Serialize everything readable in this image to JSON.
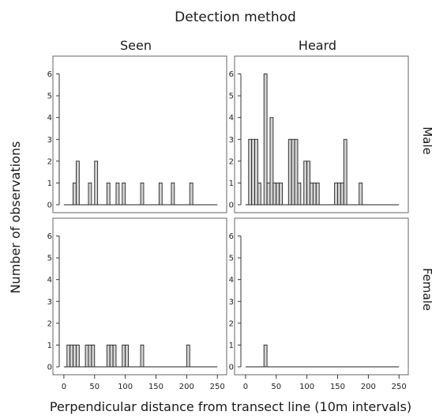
{
  "chart_data": {
    "type": "bar",
    "title": "Detection method",
    "xlabel": "Perpendicular distance from transect line (10m intervals)",
    "ylabel": "Number of observations",
    "columns": [
      "Seen",
      "Heard"
    ],
    "rows": [
      "Male",
      "Female"
    ],
    "xlim": [
      -5,
      260
    ],
    "ylim": [
      0,
      6.6
    ],
    "bin_width": 5,
    "xticks": [
      0,
      50,
      100,
      150,
      200,
      250
    ],
    "yticks": [
      0,
      1,
      2,
      3,
      4,
      5,
      6
    ],
    "panels": [
      {
        "row": "Male",
        "column": "Seen",
        "bars": [
          {
            "x": 15,
            "y": 1
          },
          {
            "x": 20,
            "y": 2
          },
          {
            "x": 40,
            "y": 1
          },
          {
            "x": 50,
            "y": 2
          },
          {
            "x": 70,
            "y": 1
          },
          {
            "x": 85,
            "y": 1
          },
          {
            "x": 95,
            "y": 1
          },
          {
            "x": 125,
            "y": 1
          },
          {
            "x": 155,
            "y": 1
          },
          {
            "x": 175,
            "y": 1
          },
          {
            "x": 205,
            "y": 1
          }
        ]
      },
      {
        "row": "Male",
        "column": "Heard",
        "bars": [
          {
            "x": 5,
            "y": 3
          },
          {
            "x": 10,
            "y": 3
          },
          {
            "x": 15,
            "y": 3
          },
          {
            "x": 20,
            "y": 1
          },
          {
            "x": 30,
            "y": 6
          },
          {
            "x": 35,
            "y": 1
          },
          {
            "x": 40,
            "y": 4
          },
          {
            "x": 45,
            "y": 1
          },
          {
            "x": 50,
            "y": 1
          },
          {
            "x": 55,
            "y": 1
          },
          {
            "x": 70,
            "y": 3
          },
          {
            "x": 75,
            "y": 3
          },
          {
            "x": 80,
            "y": 3
          },
          {
            "x": 85,
            "y": 1
          },
          {
            "x": 95,
            "y": 2
          },
          {
            "x": 100,
            "y": 2
          },
          {
            "x": 105,
            "y": 1
          },
          {
            "x": 110,
            "y": 1
          },
          {
            "x": 115,
            "y": 1
          },
          {
            "x": 145,
            "y": 1
          },
          {
            "x": 150,
            "y": 1
          },
          {
            "x": 155,
            "y": 1
          },
          {
            "x": 160,
            "y": 3
          },
          {
            "x": 185,
            "y": 1
          }
        ]
      },
      {
        "row": "Female",
        "column": "Seen",
        "bars": [
          {
            "x": 5,
            "y": 1
          },
          {
            "x": 10,
            "y": 1
          },
          {
            "x": 15,
            "y": 1
          },
          {
            "x": 20,
            "y": 1
          },
          {
            "x": 35,
            "y": 1
          },
          {
            "x": 40,
            "y": 1
          },
          {
            "x": 45,
            "y": 1
          },
          {
            "x": 70,
            "y": 1
          },
          {
            "x": 75,
            "y": 1
          },
          {
            "x": 80,
            "y": 1
          },
          {
            "x": 95,
            "y": 1
          },
          {
            "x": 100,
            "y": 1
          },
          {
            "x": 125,
            "y": 1
          },
          {
            "x": 200,
            "y": 1
          }
        ]
      },
      {
        "row": "Female",
        "column": "Heard",
        "bars": [
          {
            "x": 30,
            "y": 1
          }
        ]
      }
    ]
  }
}
